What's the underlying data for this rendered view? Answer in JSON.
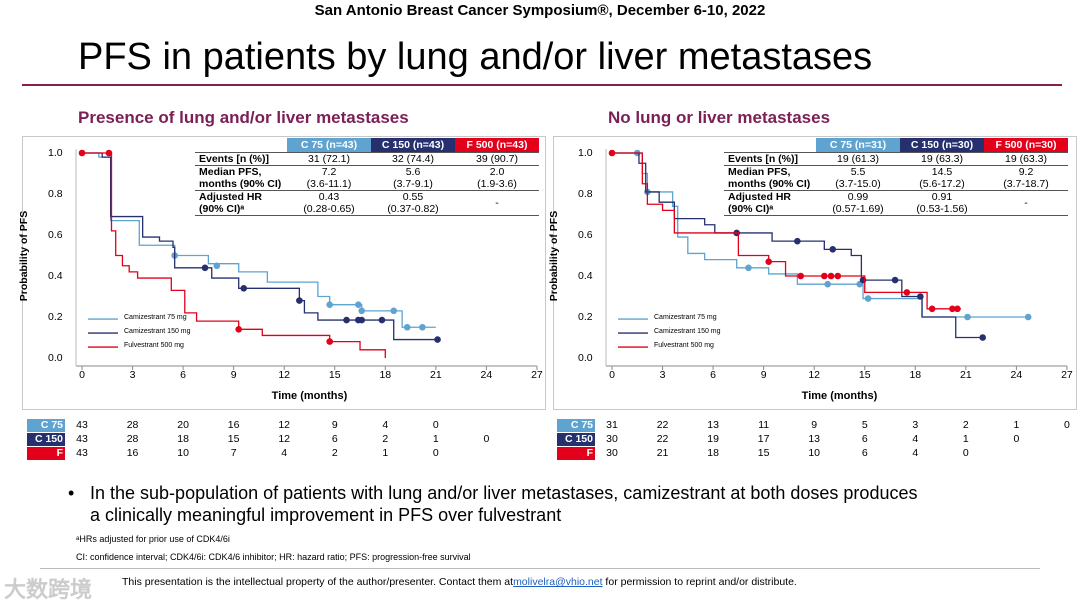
{
  "header": {
    "conference": "San Antonio Breast Cancer Symposium®, December 6-10, 2022",
    "title": "PFS in patients by lung and/or liver metastases"
  },
  "colors": {
    "c75": "#5fa3d0",
    "c150": "#27306f",
    "f500": "#e2001a",
    "accent": "#8a1c4f"
  },
  "legend": [
    "Camizestrant 75 mg",
    "Camizestrant 150 mg",
    "Fulvestrant 500 mg"
  ],
  "risk_labels": [
    "C 75",
    "C 150",
    "F"
  ],
  "table_row_labels": {
    "events": "Events [n (%)]",
    "median1": "Median PFS,",
    "median2": "months (90% CI)",
    "hr1": "Adjusted HR",
    "hr2": "(90% CI)ᵃ"
  },
  "chart_data": [
    {
      "type": "line",
      "title": "Presence of lung and/or liver metastases",
      "xlabel": "Time (months)",
      "ylabel": "Probability of PFS",
      "xlim": [
        0,
        27
      ],
      "ylim": [
        0,
        1
      ],
      "xticks": [
        "0",
        "3",
        "6",
        "9",
        "12",
        "15",
        "18",
        "21",
        "24",
        "27"
      ],
      "yticks": [
        "0.0",
        "0.2",
        "0.4",
        "0.6",
        "0.8",
        "1.0"
      ],
      "legend_position": "bottom-left",
      "table": {
        "headers": [
          "C 75 (n=43)",
          "C 150 (n=43)",
          "F 500 (n=43)"
        ],
        "events": [
          "31 (72.1)",
          "32 (74.4)",
          "39 (90.7)"
        ],
        "median": [
          "7.2",
          "5.6",
          "2.0"
        ],
        "median_ci": [
          "(3.6-11.1)",
          "(3.7-9.1)",
          "(1.9-3.6)"
        ],
        "hr": [
          "0.43",
          "0.55",
          "-"
        ],
        "hr_ci": [
          "(0.28-0.65)",
          "(0.37-0.82)",
          ""
        ]
      },
      "series": [
        {
          "name": "Camizestrant 75 mg",
          "steps": [
            [
              0,
              1
            ],
            [
              1,
              0.98
            ],
            [
              1.7,
              0.67
            ],
            [
              3.4,
              0.55
            ],
            [
              5.5,
              0.5
            ],
            [
              7.5,
              0.46
            ],
            [
              9.3,
              0.42
            ],
            [
              11,
              0.37
            ],
            [
              14,
              0.3
            ],
            [
              14.7,
              0.26
            ],
            [
              16.6,
              0.23
            ],
            [
              19,
              0.15
            ],
            [
              21,
              0.15
            ]
          ],
          "censored": [
            [
              5.5,
              0.5
            ],
            [
              8,
              0.45
            ],
            [
              14.7,
              0.26
            ],
            [
              16.4,
              0.26
            ],
            [
              16.6,
              0.23
            ],
            [
              18.5,
              0.23
            ],
            [
              19.3,
              0.15
            ],
            [
              20.2,
              0.15
            ]
          ],
          "at_risk": [
            "43",
            "28",
            "20",
            "16",
            "12",
            "9",
            "4",
            "0"
          ]
        },
        {
          "name": "Camizestrant 150 mg",
          "steps": [
            [
              0,
              1
            ],
            [
              1.2,
              0.98
            ],
            [
              1.7,
              0.69
            ],
            [
              3.6,
              0.59
            ],
            [
              4.6,
              0.57
            ],
            [
              5.4,
              0.54
            ],
            [
              5.5,
              0.44
            ],
            [
              7.7,
              0.39
            ],
            [
              9.3,
              0.34
            ],
            [
              12.9,
              0.28
            ],
            [
              13.2,
              0.22
            ],
            [
              14,
              0.185
            ],
            [
              18.5,
              0.09
            ],
            [
              21.1,
              0.09
            ]
          ],
          "censored": [
            [
              7.3,
              0.44
            ],
            [
              9.6,
              0.34
            ],
            [
              12.9,
              0.28
            ],
            [
              15.7,
              0.185
            ],
            [
              16.4,
              0.185
            ],
            [
              16.6,
              0.185
            ],
            [
              17.8,
              0.185
            ],
            [
              21.1,
              0.09
            ]
          ],
          "at_risk": [
            "43",
            "28",
            "18",
            "15",
            "12",
            "6",
            "2",
            "1",
            "0"
          ]
        },
        {
          "name": "Fulvestrant 500 mg",
          "steps": [
            [
              0,
              1
            ],
            [
              1.7,
              1
            ],
            [
              1.75,
              0.62
            ],
            [
              2,
              0.5
            ],
            [
              2.4,
              0.45
            ],
            [
              2.8,
              0.42
            ],
            [
              3.3,
              0.39
            ],
            [
              5.3,
              0.33
            ],
            [
              6.1,
              0.22
            ],
            [
              6.8,
              0.18
            ],
            [
              9.3,
              0.14
            ],
            [
              10.7,
              0.11
            ],
            [
              14.7,
              0.08
            ],
            [
              16.5,
              0.04
            ],
            [
              18,
              0.04
            ],
            [
              18,
              0
            ]
          ],
          "censored": [
            [
              0,
              1
            ],
            [
              1.6,
              1
            ],
            [
              9.3,
              0.14
            ],
            [
              14.7,
              0.08
            ]
          ],
          "at_risk": [
            "43",
            "16",
            "10",
            "7",
            "4",
            "2",
            "1",
            "0"
          ]
        }
      ]
    },
    {
      "type": "line",
      "title": "No lung or liver metastases",
      "xlabel": "Time (months)",
      "ylabel": "Probability of PFS",
      "xlim": [
        0,
        27
      ],
      "ylim": [
        0,
        1
      ],
      "xticks": [
        "0",
        "3",
        "6",
        "9",
        "12",
        "15",
        "18",
        "21",
        "24",
        "27"
      ],
      "yticks": [
        "0.0",
        "0.2",
        "0.4",
        "0.6",
        "0.8",
        "1.0"
      ],
      "legend_position": "bottom-left",
      "table": {
        "headers": [
          "C 75 (n=31)",
          "C 150 (n=30)",
          "F 500 (n=30)"
        ],
        "events": [
          "19 (61.3)",
          "19 (63.3)",
          "19 (63.3)"
        ],
        "median": [
          "5.5",
          "14.5",
          "9.2"
        ],
        "median_ci": [
          "(3.7-15.0)",
          "(5.6-17.2)",
          "(3.7-18.7)"
        ],
        "hr": [
          "0.99",
          "0.91",
          "-"
        ],
        "hr_ci": [
          "(0.57-1.69)",
          "(0.53-1.56)",
          ""
        ]
      },
      "series": [
        {
          "name": "Camizestrant 75 mg",
          "steps": [
            [
              0,
              1
            ],
            [
              1.8,
              0.9
            ],
            [
              2.1,
              0.81
            ],
            [
              3.6,
              0.74
            ],
            [
              3.9,
              0.59
            ],
            [
              4.5,
              0.51
            ],
            [
              5.5,
              0.48
            ],
            [
              7.4,
              0.44
            ],
            [
              9.3,
              0.41
            ],
            [
              11,
              0.36
            ],
            [
              14.9,
              0.29
            ],
            [
              18.4,
              0.2
            ],
            [
              24.7,
              0.2
            ]
          ],
          "censored": [
            [
              1.5,
              1
            ],
            [
              2.1,
              0.81
            ],
            [
              8.1,
              0.44
            ],
            [
              12.8,
              0.36
            ],
            [
              14.7,
              0.36
            ],
            [
              15.2,
              0.29
            ],
            [
              21.1,
              0.2
            ],
            [
              24.7,
              0.2
            ]
          ],
          "at_risk": [
            "31",
            "22",
            "13",
            "11",
            "9",
            "5",
            "3",
            "2",
            "1",
            "0"
          ]
        },
        {
          "name": "Camizestrant 150 mg",
          "steps": [
            [
              0,
              1
            ],
            [
              1.6,
              0.95
            ],
            [
              2,
              0.81
            ],
            [
              2.8,
              0.76
            ],
            [
              3.7,
              0.68
            ],
            [
              5.5,
              0.65
            ],
            [
              6.1,
              0.61
            ],
            [
              9.5,
              0.57
            ],
            [
              12.6,
              0.53
            ],
            [
              14.2,
              0.5
            ],
            [
              14.8,
              0.38
            ],
            [
              17.2,
              0.3
            ],
            [
              18.4,
              0.2
            ],
            [
              20.4,
              0.1
            ],
            [
              22,
              0.1
            ]
          ],
          "censored": [
            [
              7.4,
              0.61
            ],
            [
              11,
              0.57
            ],
            [
              13.1,
              0.53
            ],
            [
              14.9,
              0.38
            ],
            [
              16.8,
              0.38
            ],
            [
              18.3,
              0.3
            ],
            [
              22,
              0.1
            ]
          ],
          "at_risk": [
            "30",
            "22",
            "19",
            "17",
            "13",
            "6",
            "4",
            "1",
            "0"
          ]
        },
        {
          "name": "Fulvestrant 500 mg",
          "steps": [
            [
              0,
              1
            ],
            [
              1.8,
              0.85
            ],
            [
              2.1,
              0.75
            ],
            [
              3,
              0.72
            ],
            [
              3.7,
              0.61
            ],
            [
              7.3,
              0.61
            ],
            [
              7.5,
              0.5
            ],
            [
              9.3,
              0.47
            ],
            [
              10.3,
              0.4
            ],
            [
              15,
              0.32
            ],
            [
              18.7,
              0.24
            ],
            [
              20.7,
              0.24
            ]
          ],
          "censored": [
            [
              0,
              1
            ],
            [
              9.3,
              0.47
            ],
            [
              11.2,
              0.4
            ],
            [
              12.6,
              0.4
            ],
            [
              13,
              0.4
            ],
            [
              13.4,
              0.4
            ],
            [
              17.5,
              0.32
            ],
            [
              19,
              0.24
            ],
            [
              20.2,
              0.24
            ],
            [
              20.5,
              0.24
            ]
          ],
          "at_risk": [
            "30",
            "21",
            "18",
            "15",
            "10",
            "6",
            "4",
            "0"
          ]
        }
      ]
    }
  ],
  "bullet": "In the sub-population of patients with lung and/or liver metastases, camizestrant at both doses produces a clinically meaningful improvement in PFS over fulvestrant",
  "footnotes": [
    "ᵃHRs adjusted for prior use of CDK4/6i",
    "CI: confidence interval; CDK4/6i: CDK4/6 inhibitor; HR: hazard ratio; PFS: progression-free survival"
  ],
  "footer": {
    "before": "This presentation is the intellectual property of the author/presenter. Contact them at",
    "email": "molivelra@vhio.net",
    "after": " for permission to reprint and/or distribute."
  },
  "watermark": "大数跨境"
}
